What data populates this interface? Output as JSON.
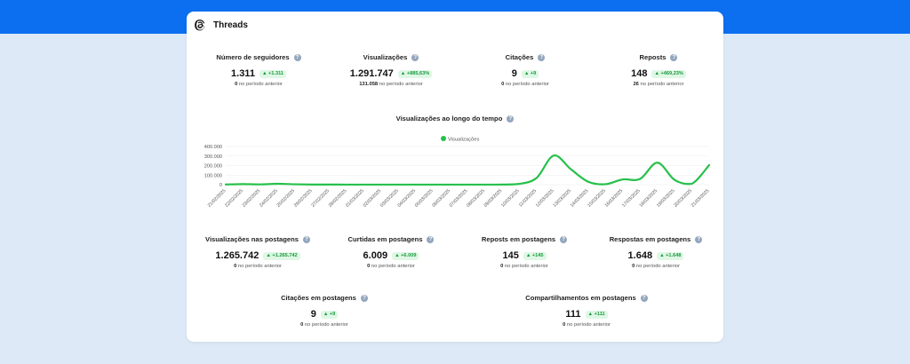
{
  "header": {
    "title": "Threads",
    "logo_icon": "threads-logo-icon"
  },
  "top_metrics": [
    {
      "title": "Número de seguidores",
      "value": "1.311",
      "change": "▲ +1.311",
      "prev_value": "0",
      "prev_label": "no período anterior"
    },
    {
      "title": "Visualizações",
      "value": "1.291.747",
      "change": "▲ +885,63%",
      "prev_value": "131.058",
      "prev_label": "no período anterior"
    },
    {
      "title": "Citações",
      "value": "9",
      "change": "▲ +9",
      "prev_value": "0",
      "prev_label": "no período anterior"
    },
    {
      "title": "Reposts",
      "value": "148",
      "change": "▲ +469,23%",
      "prev_value": "26",
      "prev_label": "no período anterior"
    }
  ],
  "post_metrics": [
    {
      "title": "Visualizações nas postagens",
      "value": "1.265.742",
      "change": "▲ +1.265.742",
      "prev_value": "0",
      "prev_label": "no período anterior"
    },
    {
      "title": "Curtidas em postagens",
      "value": "6.009",
      "change": "▲ +6.009",
      "prev_value": "0",
      "prev_label": "no período anterior"
    },
    {
      "title": "Reposts em postagens",
      "value": "145",
      "change": "▲ +145",
      "prev_value": "0",
      "prev_label": "no período anterior"
    },
    {
      "title": "Respostas em postagens",
      "value": "1.648",
      "change": "▲ +1.648",
      "prev_value": "0",
      "prev_label": "no período anterior"
    }
  ],
  "bottom_metrics": [
    {
      "title": "Citações em postagens",
      "value": "9",
      "change": "▲ +9",
      "prev_value": "0",
      "prev_label": "no período anterior"
    },
    {
      "title": "Compartilhamentos em postagens",
      "value": "111",
      "change": "▲ +111",
      "prev_value": "0",
      "prev_label": "no período anterior"
    }
  ],
  "colors": {
    "accent": "#0b6ff0",
    "line": "#27c04a",
    "badge_bg": "#dff7e5",
    "badge_text": "#1a9a3d"
  },
  "chart_data": {
    "type": "line",
    "title": "Visualizações ao longo do tempo",
    "legend_position": "top-center",
    "grid": true,
    "ylim": [
      0,
      400000
    ],
    "y_ticks": [
      "400.000",
      "300.000",
      "200.000",
      "100.000",
      "0"
    ],
    "x": [
      "21/02/2025",
      "22/02/2025",
      "23/02/2025",
      "24/02/2025",
      "25/02/2025",
      "26/02/2025",
      "27/02/2025",
      "28/02/2025",
      "01/03/2025",
      "02/03/2025",
      "03/03/2025",
      "04/03/2025",
      "05/03/2025",
      "06/03/2025",
      "07/03/2025",
      "08/03/2025",
      "09/03/2025",
      "10/03/2025",
      "11/03/2025",
      "12/03/2025",
      "13/03/2025",
      "14/03/2025",
      "15/03/2025",
      "16/03/2025",
      "17/03/2025",
      "18/03/2025",
      "19/03/2025",
      "20/03/2025",
      "21/03/2025"
    ],
    "series": [
      {
        "name": "Visualizações",
        "values": [
          2000,
          6000,
          3000,
          9000,
          4000,
          1500,
          1000,
          800,
          600,
          500,
          500,
          500,
          500,
          500,
          600,
          800,
          1000,
          8000,
          70000,
          305000,
          160000,
          30000,
          5000,
          55000,
          60000,
          230000,
          50000,
          10000,
          205000
        ]
      }
    ]
  }
}
